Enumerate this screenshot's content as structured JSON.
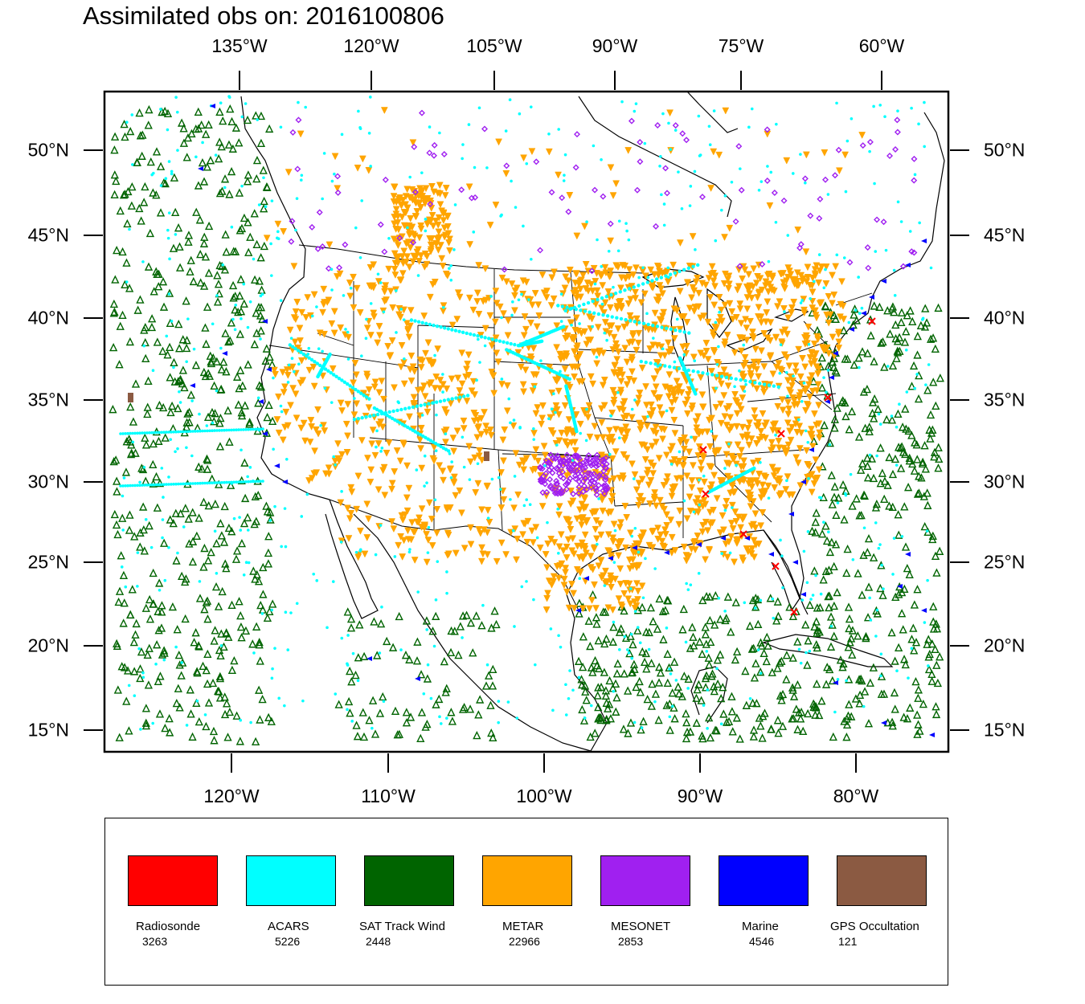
{
  "title": "Assimilated obs on: 2016100806",
  "axes": {
    "top_lon_labels": [
      "135°W",
      "120°W",
      "105°W",
      "90°W",
      "75°W",
      "60°W"
    ],
    "bottom_lon_labels": [
      "120°W",
      "110°W",
      "100°W",
      "90°W",
      "80°W"
    ],
    "left_lat_labels": [
      "50°N",
      "45°N",
      "40°N",
      "35°N",
      "30°N",
      "25°N",
      "20°N",
      "15°N"
    ],
    "right_lat_labels": [
      "50°N",
      "45°N",
      "40°N",
      "35°N",
      "30°N",
      "25°N",
      "20°N",
      "15°N"
    ]
  },
  "map": {
    "lon_range": [
      -128,
      -74
    ],
    "lat_range": [
      14,
      52
    ]
  },
  "legend": {
    "items": [
      {
        "name": "Radiosonde",
        "count": "3263",
        "color": "#ff0000"
      },
      {
        "name": "ACARS",
        "count": "5226",
        "color": "#00ffff"
      },
      {
        "name": "SAT Track Wind",
        "count": "2448",
        "color": "#006400"
      },
      {
        "name": "METAR",
        "count": "22966",
        "color": "#ffa500"
      },
      {
        "name": "MESONET",
        "count": "2853",
        "color": "#a020f0"
      },
      {
        "name": "Marine",
        "count": "4546",
        "color": "#0000ff"
      },
      {
        "name": "GPS Occultation",
        "count": "121",
        "color": "#8b5a42"
      }
    ]
  }
}
